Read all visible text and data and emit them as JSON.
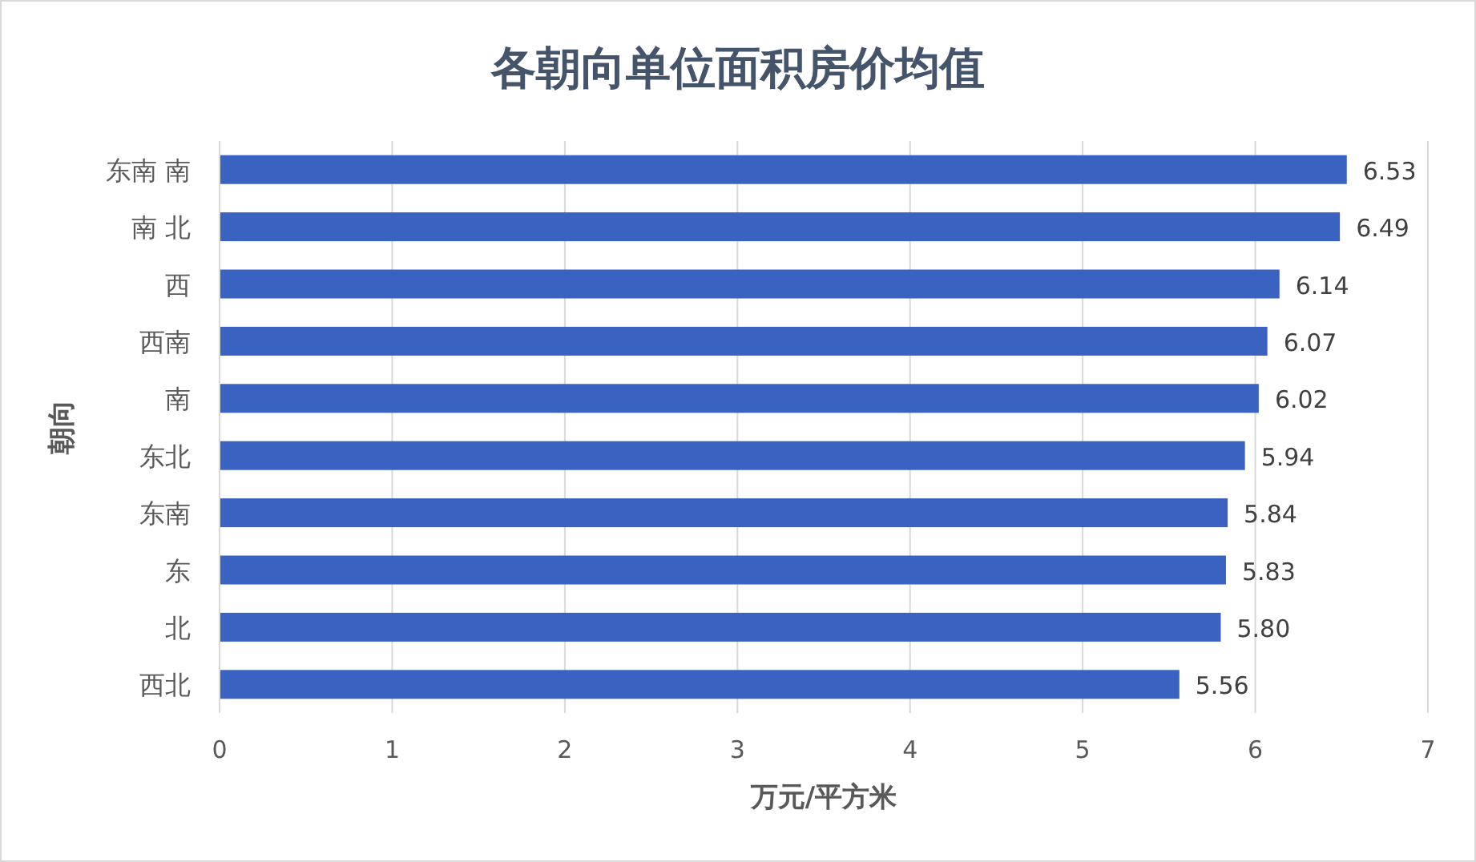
{
  "chart_data": {
    "type": "bar",
    "orientation": "horizontal",
    "title": "各朝向单位面积房价均值",
    "xlabel": "万元/平方米",
    "ylabel": "朝向",
    "categories": [
      "东南 南",
      "南 北",
      "西",
      "西南",
      "南",
      "东北",
      "东南",
      "东",
      "北",
      "西北"
    ],
    "values": [
      6.53,
      6.49,
      6.14,
      6.07,
      6.02,
      5.94,
      5.84,
      5.83,
      5.8,
      5.56
    ],
    "value_labels": [
      "6.53",
      "6.49",
      "6.14",
      "6.07",
      "6.02",
      "5.94",
      "5.84",
      "5.83",
      "5.80",
      "5.56"
    ],
    "color": "#3a62c0",
    "xlim": [
      0,
      7
    ],
    "xticks": [
      0,
      1,
      2,
      3,
      4,
      5,
      6,
      7
    ],
    "grid": "x"
  }
}
